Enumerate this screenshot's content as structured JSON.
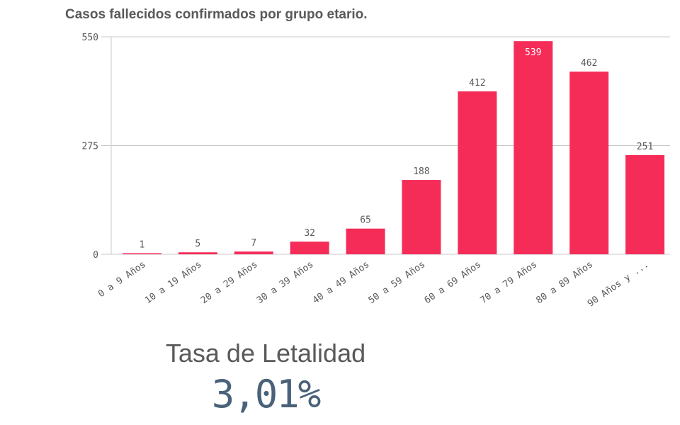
{
  "chart_data": {
    "type": "bar",
    "title": "Casos fallecidos confirmados por grupo etario.",
    "xlabel": "",
    "ylabel": "",
    "categories": [
      "0 a 9 Años",
      "10 a 19 Años",
      "20 a 29 Años",
      "30 a 39 Años",
      "40 a 49 Años",
      "50 a 59 Años",
      "60 a 69 Años",
      "70 a 79 Años",
      "80 a 89 Años",
      "90 Años y ..."
    ],
    "values": [
      1,
      5,
      7,
      32,
      65,
      188,
      412,
      539,
      462,
      251
    ],
    "value_labels": [
      "1",
      "5",
      "7",
      "32",
      "65",
      "188",
      "412",
      "539",
      "462",
      "251"
    ],
    "ylim": [
      0,
      550
    ],
    "yticks": [
      0,
      275,
      550
    ],
    "ytick_labels": [
      "0",
      "275",
      "550"
    ],
    "grid": true,
    "bar_color": "#f52c58"
  },
  "kpi": {
    "title": "Tasa de Letalidad",
    "value": "3,01%"
  }
}
